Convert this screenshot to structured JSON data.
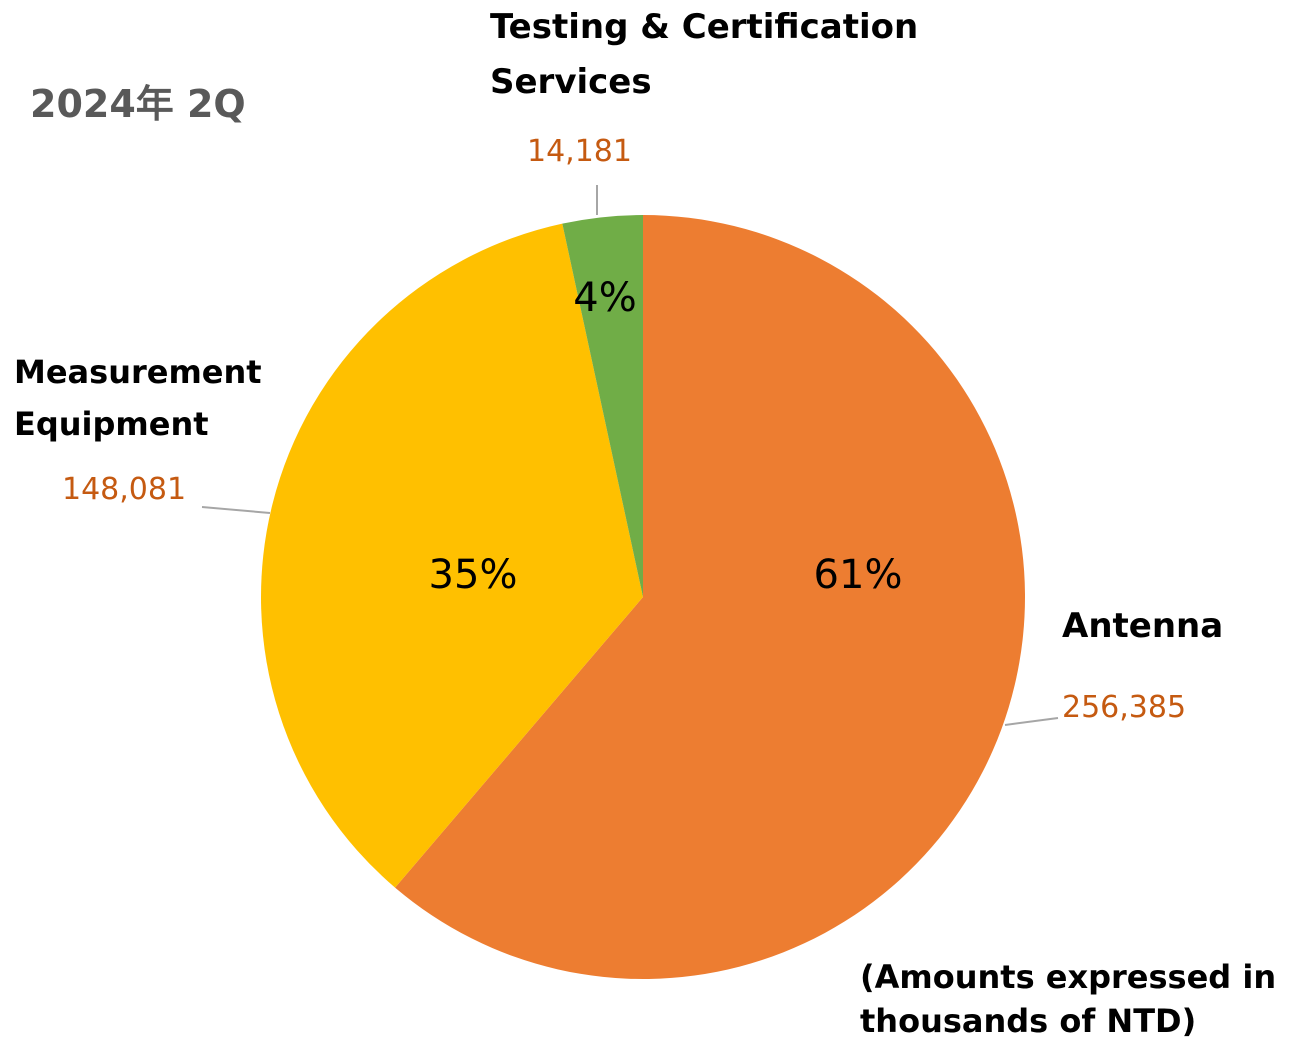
{
  "chart_data": {
    "type": "pie",
    "title": "2024年 2Q",
    "categories": [
      "Antenna",
      "Measurement Equipment",
      "Testing & Certification Services"
    ],
    "values": [
      256385,
      148081,
      14181
    ],
    "value_labels": [
      "256,385",
      "148,081",
      "14,181"
    ],
    "percents": [
      61,
      35,
      4
    ],
    "percent_labels": [
      "61%",
      "35%",
      "4%"
    ],
    "colors": [
      "#ED7D31",
      "#FFC000",
      "#70AD47"
    ],
    "note": [
      "(Amounts expressed in",
      "thousands of NTD)"
    ]
  }
}
